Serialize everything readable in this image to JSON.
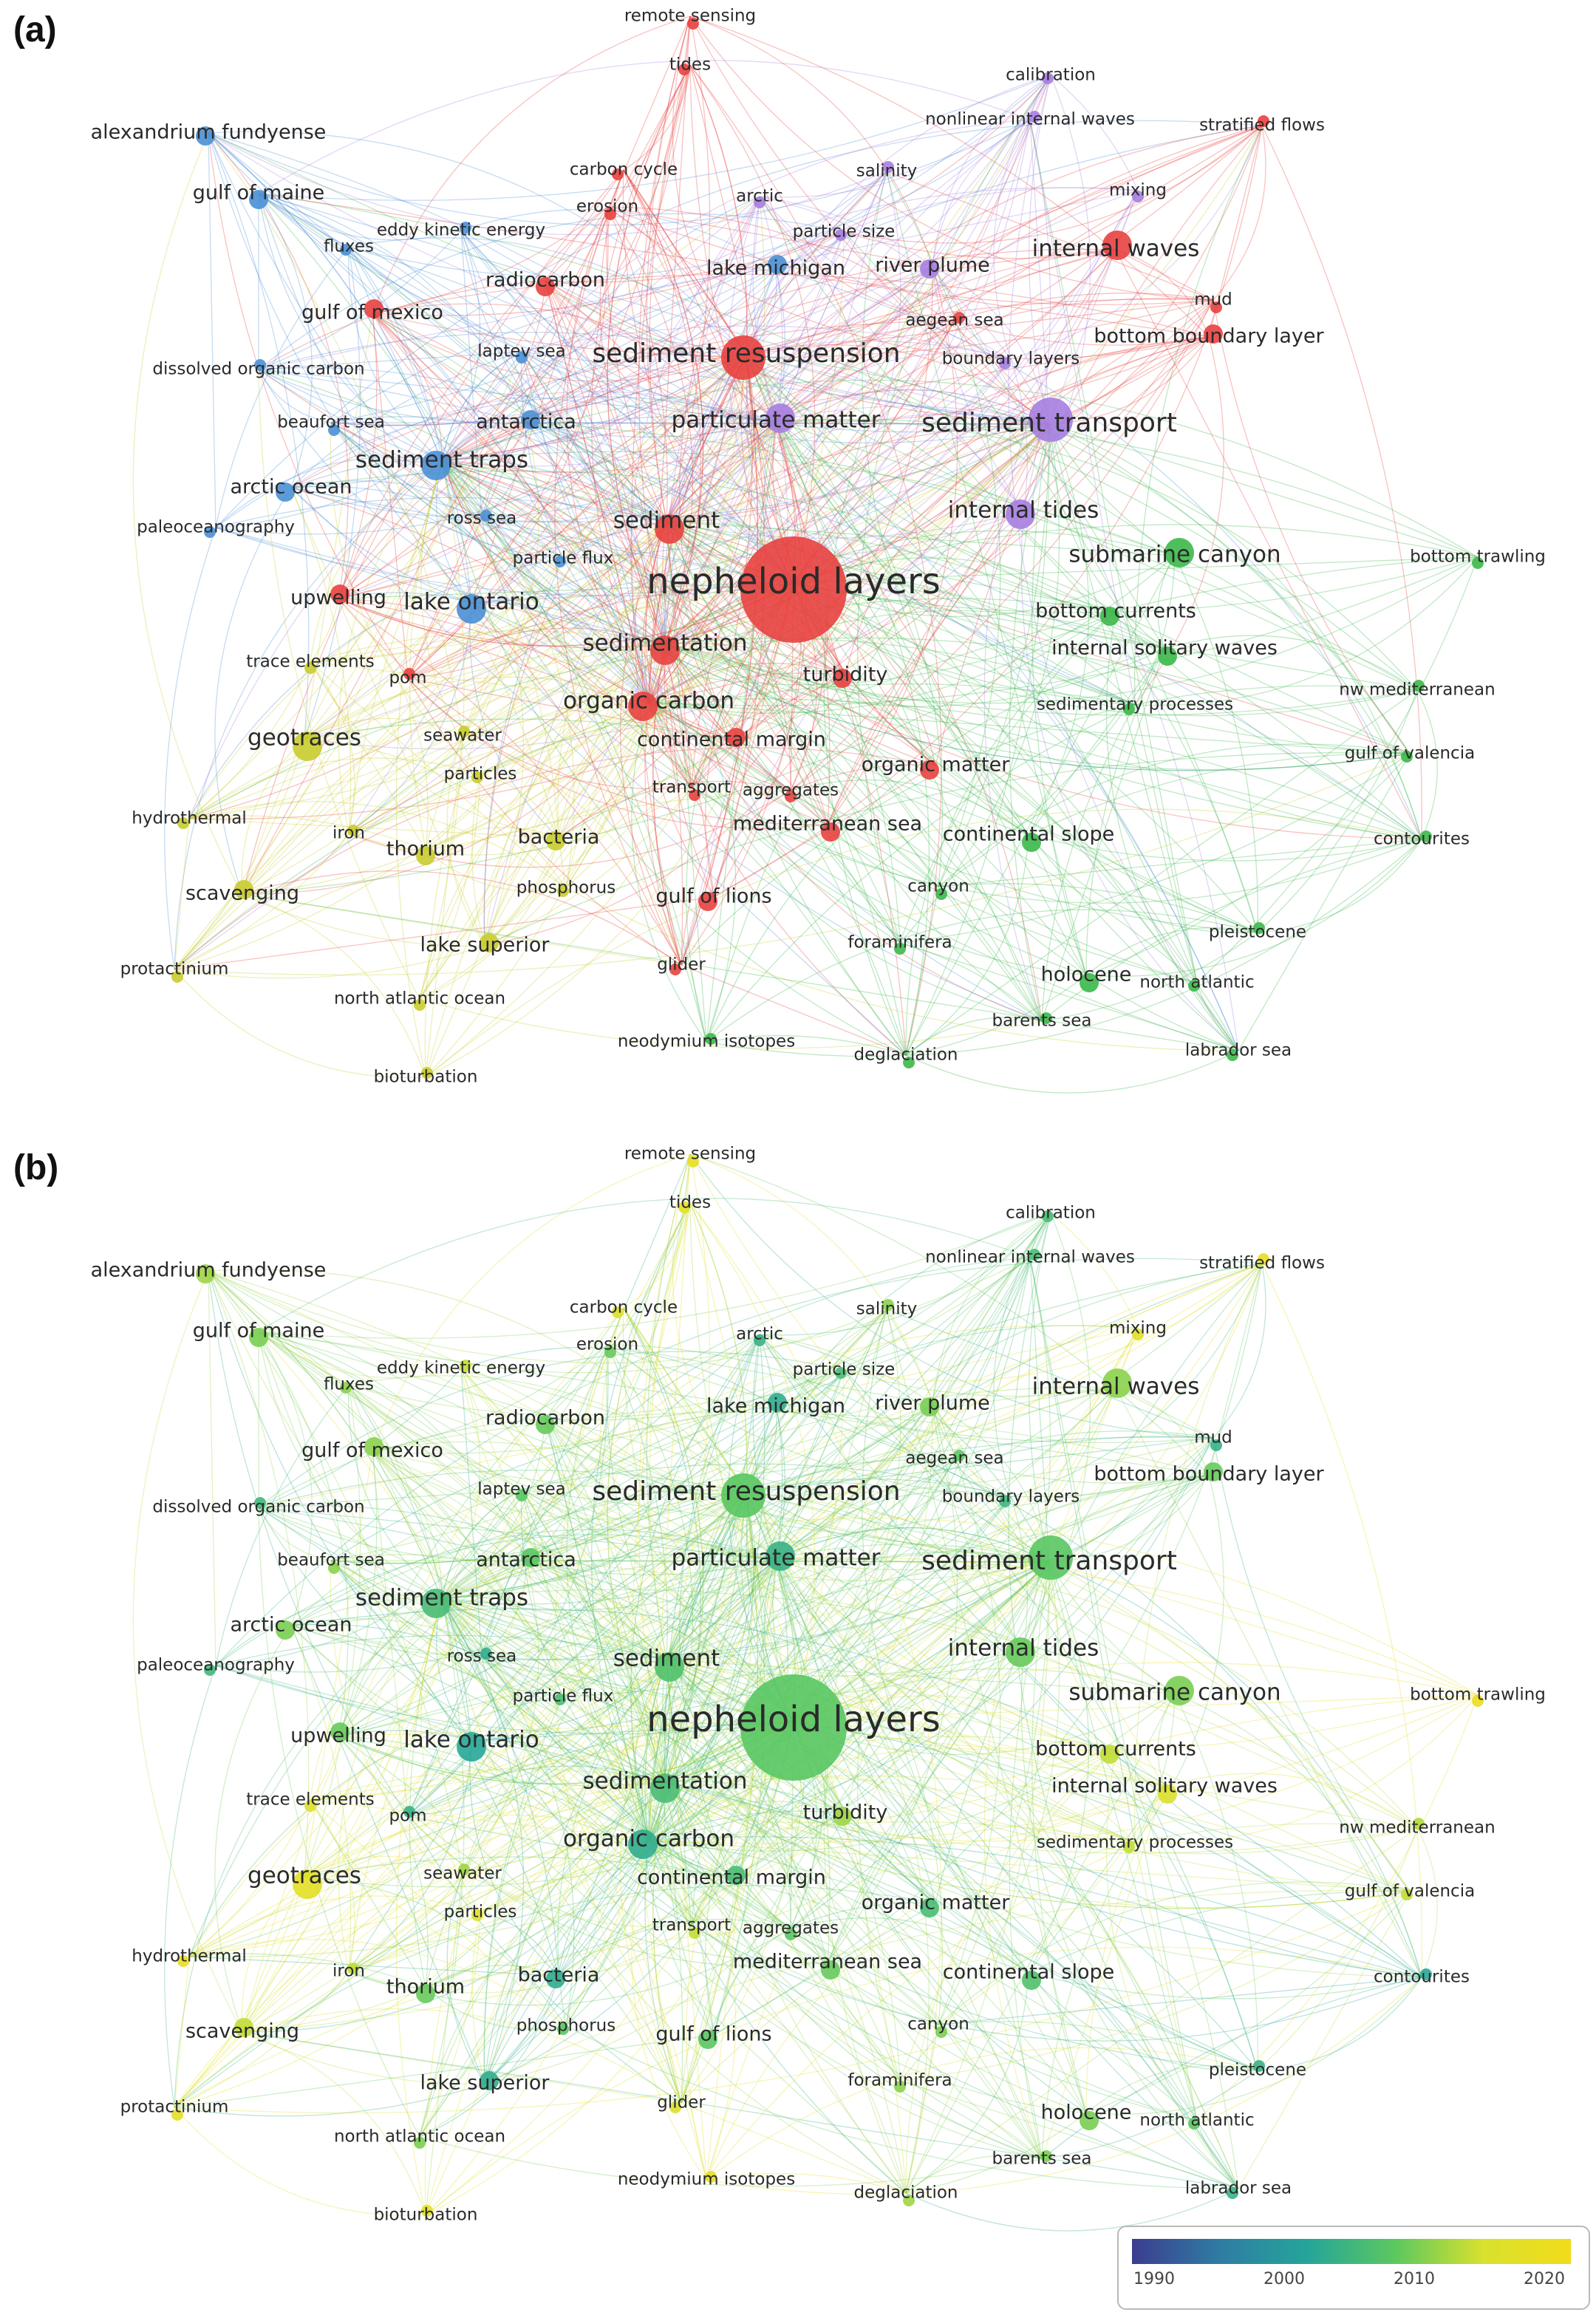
{
  "panels": [
    {
      "id": "a",
      "label": "(a)",
      "coloring": "cluster"
    },
    {
      "id": "b",
      "label": "(b)",
      "coloring": "year"
    }
  ],
  "colors": {
    "cluster_red": "#e8413f",
    "cluster_blue": "#4a90d6",
    "cluster_purple": "#a67ee0",
    "cluster_green": "#3cb84a",
    "cluster_yellow": "#c9cc2e",
    "year_scale": [
      "#3b3d8f",
      "#2f7ca3",
      "#25a59a",
      "#5cc85f",
      "#d8e12e",
      "#f2dc1b"
    ]
  },
  "legend": {
    "ticks": [
      "1990",
      "2000",
      "2010",
      "2020"
    ],
    "min": 1988,
    "max": 2022
  },
  "nodes": [
    {
      "label": "nepheloid layers",
      "size": 5,
      "cluster": "red",
      "year": 2008
    },
    {
      "label": "sediment transport",
      "size": 4,
      "cluster": "purple",
      "year": 2008
    },
    {
      "label": "sediment resuspension",
      "size": 4,
      "cluster": "red",
      "year": 2008
    },
    {
      "label": "particulate matter",
      "size": 3,
      "cluster": "purple",
      "year": 2004
    },
    {
      "label": "sediment traps",
      "size": 3,
      "cluster": "blue",
      "year": 2006
    },
    {
      "label": "sediment",
      "size": 3,
      "cluster": "red",
      "year": 2007
    },
    {
      "label": "sedimentation",
      "size": 3,
      "cluster": "red",
      "year": 2006
    },
    {
      "label": "internal waves",
      "size": 3,
      "cluster": "red",
      "year": 2011
    },
    {
      "label": "internal tides",
      "size": 3,
      "cluster": "purple",
      "year": 2009
    },
    {
      "label": "submarine canyon",
      "size": 3,
      "cluster": "green",
      "year": 2010
    },
    {
      "label": "organic carbon",
      "size": 3,
      "cluster": "red",
      "year": 2003
    },
    {
      "label": "geotraces",
      "size": 3,
      "cluster": "yellow",
      "year": 2018
    },
    {
      "label": "lake ontario",
      "size": 3,
      "cluster": "blue",
      "year": 2002
    },
    {
      "label": "upwelling",
      "size": 2,
      "cluster": "red",
      "year": 2009
    },
    {
      "label": "turbidity",
      "size": 2,
      "cluster": "red",
      "year": 2012
    },
    {
      "label": "continental margin",
      "size": 2,
      "cluster": "red",
      "year": 2006
    },
    {
      "label": "organic matter",
      "size": 2,
      "cluster": "red",
      "year": 2006
    },
    {
      "label": "continental slope",
      "size": 2,
      "cluster": "green",
      "year": 2007
    },
    {
      "label": "gulf of maine",
      "size": 2,
      "cluster": "blue",
      "year": 2010
    },
    {
      "label": "gulf of mexico",
      "size": 2,
      "cluster": "red",
      "year": 2011
    },
    {
      "label": "alexandrium fundyense",
      "size": 2,
      "cluster": "blue",
      "year": 2012
    },
    {
      "label": "bottom boundary layer",
      "size": 2,
      "cluster": "red",
      "year": 2009
    },
    {
      "label": "bottom currents",
      "size": 2,
      "cluster": "green",
      "year": 2014
    },
    {
      "label": "internal solitary waves",
      "size": 2,
      "cluster": "green",
      "year": 2016
    },
    {
      "label": "thorium",
      "size": 2,
      "cluster": "yellow",
      "year": 2009
    },
    {
      "label": "scavenging",
      "size": 2,
      "cluster": "yellow",
      "year": 2014
    },
    {
      "label": "bacteria",
      "size": 2,
      "cluster": "yellow",
      "year": 2003
    },
    {
      "label": "lake superior",
      "size": 2,
      "cluster": "yellow",
      "year": 2003
    },
    {
      "label": "gulf of lions",
      "size": 2,
      "cluster": "red",
      "year": 2008
    },
    {
      "label": "holocene",
      "size": 2,
      "cluster": "green",
      "year": 2010
    },
    {
      "label": "radiocarbon",
      "size": 2,
      "cluster": "red",
      "year": 2009
    },
    {
      "label": "lake michigan",
      "size": 2,
      "cluster": "blue",
      "year": 2003
    },
    {
      "label": "river plume",
      "size": 2,
      "cluster": "purple",
      "year": 2010
    },
    {
      "label": "antarctica",
      "size": 2,
      "cluster": "blue",
      "year": 2008
    },
    {
      "label": "arctic ocean",
      "size": 2,
      "cluster": "blue",
      "year": 2010
    },
    {
      "label": "mediterranean sea",
      "size": 2,
      "cluster": "red",
      "year": 2009
    },
    {
      "label": "trace elements",
      "size": 1,
      "cluster": "yellow",
      "year": 2016
    },
    {
      "label": "seawater",
      "size": 1,
      "cluster": "yellow",
      "year": 2012
    },
    {
      "label": "particles",
      "size": 1,
      "cluster": "yellow",
      "year": 2016
    },
    {
      "label": "iron",
      "size": 1,
      "cluster": "yellow",
      "year": 2014
    },
    {
      "label": "hydrothermal",
      "size": 1,
      "cluster": "yellow",
      "year": 2019
    },
    {
      "label": "protactinium",
      "size": 1,
      "cluster": "yellow",
      "year": 2018
    },
    {
      "label": "north atlantic ocean",
      "size": 1,
      "cluster": "yellow",
      "year": 2010
    },
    {
      "label": "bioturbation",
      "size": 1,
      "cluster": "yellow",
      "year": 2018
    },
    {
      "label": "phosphorus",
      "size": 1,
      "cluster": "yellow",
      "year": 2008
    },
    {
      "label": "neodymium isotopes",
      "size": 1,
      "cluster": "green",
      "year": 2019
    },
    {
      "label": "glider",
      "size": 1,
      "cluster": "red",
      "year": 2016
    },
    {
      "label": "transport",
      "size": 1,
      "cluster": "red",
      "year": 2014
    },
    {
      "label": "aggregates",
      "size": 1,
      "cluster": "red",
      "year": 2008
    },
    {
      "label": "pom",
      "size": 1,
      "cluster": "red",
      "year": 2004
    },
    {
      "label": "particle flux",
      "size": 1,
      "cluster": "blue",
      "year": 2006
    },
    {
      "label": "ross sea",
      "size": 1,
      "cluster": "blue",
      "year": 2003
    },
    {
      "label": "paleoceanography",
      "size": 1,
      "cluster": "blue",
      "year": 2005
    },
    {
      "label": "beaufort sea",
      "size": 1,
      "cluster": "blue",
      "year": 2011
    },
    {
      "label": "laptev sea",
      "size": 1,
      "cluster": "blue",
      "year": 2008
    },
    {
      "label": "dissolved organic carbon",
      "size": 1,
      "cluster": "blue",
      "year": 2005
    },
    {
      "label": "fluxes",
      "size": 1,
      "cluster": "blue",
      "year": 2011
    },
    {
      "label": "eddy kinetic energy",
      "size": 1,
      "cluster": "blue",
      "year": 2014
    },
    {
      "label": "carbon cycle",
      "size": 1,
      "cluster": "red",
      "year": 2016
    },
    {
      "label": "erosion",
      "size": 1,
      "cluster": "red",
      "year": 2009
    },
    {
      "label": "arctic",
      "size": 1,
      "cluster": "purple",
      "year": 2004
    },
    {
      "label": "salinity",
      "size": 1,
      "cluster": "purple",
      "year": 2011
    },
    {
      "label": "particle size",
      "size": 1,
      "cluster": "purple",
      "year": 2006
    },
    {
      "label": "aegean sea",
      "size": 1,
      "cluster": "red",
      "year": 2008
    },
    {
      "label": "boundary layers",
      "size": 1,
      "cluster": "purple",
      "year": 2005
    },
    {
      "label": "mud",
      "size": 1,
      "cluster": "red",
      "year": 2004
    },
    {
      "label": "mixing",
      "size": 1,
      "cluster": "purple",
      "year": 2017
    },
    {
      "label": "stratified flows",
      "size": 1,
      "cluster": "red",
      "year": 2019
    },
    {
      "label": "calibration",
      "size": 1,
      "cluster": "purple",
      "year": 2006
    },
    {
      "label": "nonlinear internal waves",
      "size": 1,
      "cluster": "purple",
      "year": 2006
    },
    {
      "label": "tides",
      "size": 1,
      "cluster": "red",
      "year": 2018
    },
    {
      "label": "remote sensing",
      "size": 1,
      "cluster": "red",
      "year": 2019
    },
    {
      "label": "bottom trawling",
      "size": 1,
      "cluster": "green",
      "year": 2020
    },
    {
      "label": "nw mediterranean",
      "size": 1,
      "cluster": "green",
      "year": 2013
    },
    {
      "label": "gulf of valencia",
      "size": 1,
      "cluster": "green",
      "year": 2014
    },
    {
      "label": "contourites",
      "size": 1,
      "cluster": "green",
      "year": 2002
    },
    {
      "label": "sedimentary processes",
      "size": 1,
      "cluster": "green",
      "year": 2014
    },
    {
      "label": "canyon",
      "size": 1,
      "cluster": "green",
      "year": 2010
    },
    {
      "label": "foraminifera",
      "size": 1,
      "cluster": "green",
      "year": 2011
    },
    {
      "label": "pleistocene",
      "size": 1,
      "cluster": "green",
      "year": 2004
    },
    {
      "label": "north atlantic",
      "size": 1,
      "cluster": "green",
      "year": 2008
    },
    {
      "label": "barents sea",
      "size": 1,
      "cluster": "green",
      "year": 2010
    },
    {
      "label": "labrador sea",
      "size": 1,
      "cluster": "green",
      "year": 2004
    },
    {
      "label": "deglaciation",
      "size": 1,
      "cluster": "green",
      "year": 2012
    }
  ]
}
